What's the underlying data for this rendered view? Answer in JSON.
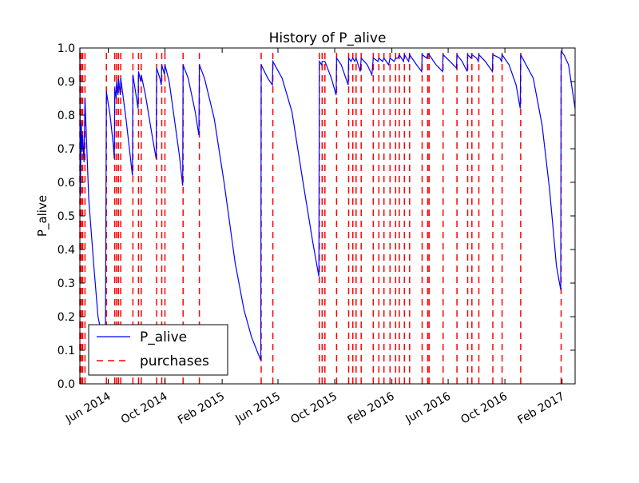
{
  "chart_data": {
    "type": "line",
    "title": "History of P_alive",
    "xlabel": "",
    "ylabel": "P_alive",
    "xlim": [
      "2014-04-01",
      "2017-03-01"
    ],
    "ylim": [
      0.0,
      1.0
    ],
    "y_ticks": [
      "0.0",
      "0.1",
      "0.2",
      "0.3",
      "0.4",
      "0.5",
      "0.6",
      "0.7",
      "0.8",
      "0.9",
      "1.0"
    ],
    "x_ticks": [
      {
        "date": "2014-06-01",
        "label": "Jun 2014"
      },
      {
        "date": "2014-10-01",
        "label": "Oct 2014"
      },
      {
        "date": "2015-02-01",
        "label": "Feb 2015"
      },
      {
        "date": "2015-06-01",
        "label": "Jun 2015"
      },
      {
        "date": "2015-10-01",
        "label": "Oct 2015"
      },
      {
        "date": "2016-02-01",
        "label": "Feb 2016"
      },
      {
        "date": "2016-06-01",
        "label": "Jun 2016"
      },
      {
        "date": "2016-10-01",
        "label": "Oct 2016"
      },
      {
        "date": "2017-02-01",
        "label": "Feb 2017"
      }
    ],
    "grid": false,
    "legend_position": "bottom-left",
    "series": [
      {
        "name": "P_alive",
        "style": "solid",
        "color": "#0000ff",
        "points": [
          [
            "2014-04-01",
            1.0
          ],
          [
            "2014-04-02",
            0.56
          ],
          [
            "2014-04-04",
            0.78
          ],
          [
            "2014-04-06",
            0.69
          ],
          [
            "2014-04-07",
            0.74
          ],
          [
            "2014-04-10",
            0.66
          ],
          [
            "2014-04-12",
            0.85
          ],
          [
            "2014-04-20",
            0.55
          ],
          [
            "2014-05-01",
            0.35
          ],
          [
            "2014-05-10",
            0.2
          ],
          [
            "2014-05-16",
            0.16
          ],
          [
            "2014-05-20",
            0.14
          ],
          [
            "2014-05-26",
            0.12
          ],
          [
            "2014-05-28",
            0.87
          ],
          [
            "2014-06-05",
            0.8
          ],
          [
            "2014-06-12",
            0.71
          ],
          [
            "2014-06-14",
            0.67
          ],
          [
            "2014-06-15",
            0.88
          ],
          [
            "2014-06-18",
            0.85
          ],
          [
            "2014-06-19",
            0.9
          ],
          [
            "2014-06-22",
            0.86
          ],
          [
            "2014-06-23",
            0.91
          ],
          [
            "2014-06-27",
            0.86
          ],
          [
            "2014-06-28",
            0.91
          ],
          [
            "2014-07-10",
            0.78
          ],
          [
            "2014-07-23",
            0.62
          ],
          [
            "2014-07-24",
            0.92
          ],
          [
            "2014-08-02",
            0.84
          ],
          [
            "2014-08-04",
            0.82
          ],
          [
            "2014-08-05",
            0.93
          ],
          [
            "2014-08-10",
            0.9
          ],
          [
            "2014-08-11",
            0.92
          ],
          [
            "2014-08-20",
            0.86
          ],
          [
            "2014-09-02",
            0.75
          ],
          [
            "2014-09-12",
            0.67
          ],
          [
            "2014-09-13",
            0.94
          ],
          [
            "2014-09-20",
            0.91
          ],
          [
            "2014-09-23",
            0.89
          ],
          [
            "2014-09-24",
            0.95
          ],
          [
            "2014-09-30",
            0.92
          ],
          [
            "2014-10-01",
            0.95
          ],
          [
            "2014-10-10",
            0.9
          ],
          [
            "2014-10-22",
            0.78
          ],
          [
            "2014-11-01",
            0.68
          ],
          [
            "2014-11-08",
            0.59
          ],
          [
            "2014-11-09",
            0.95
          ],
          [
            "2014-11-20",
            0.91
          ],
          [
            "2014-12-05",
            0.81
          ],
          [
            "2014-12-13",
            0.74
          ],
          [
            "2014-12-14",
            0.95
          ],
          [
            "2014-12-25",
            0.91
          ],
          [
            "2015-01-15",
            0.79
          ],
          [
            "2015-02-05",
            0.6
          ],
          [
            "2015-03-01",
            0.36
          ],
          [
            "2015-03-20",
            0.22
          ],
          [
            "2015-04-05",
            0.14
          ],
          [
            "2015-04-25",
            0.07
          ],
          [
            "2015-04-26",
            0.95
          ],
          [
            "2015-05-10",
            0.91
          ],
          [
            "2015-05-20",
            0.89
          ],
          [
            "2015-05-21",
            0.96
          ],
          [
            "2015-06-10",
            0.91
          ],
          [
            "2015-07-01",
            0.81
          ],
          [
            "2015-07-25",
            0.6
          ],
          [
            "2015-08-15",
            0.42
          ],
          [
            "2015-08-28",
            0.32
          ],
          [
            "2015-08-29",
            0.96
          ],
          [
            "2015-09-03",
            0.95
          ],
          [
            "2015-09-04",
            0.96
          ],
          [
            "2015-09-10",
            0.96
          ],
          [
            "2015-09-24",
            0.91
          ],
          [
            "2015-10-04",
            0.86
          ],
          [
            "2015-10-05",
            0.97
          ],
          [
            "2015-10-15",
            0.95
          ],
          [
            "2015-10-30",
            0.89
          ],
          [
            "2015-10-31",
            0.97
          ],
          [
            "2015-11-05",
            0.96
          ],
          [
            "2015-11-09",
            0.97
          ],
          [
            "2015-11-13",
            0.96
          ],
          [
            "2015-11-16",
            0.97
          ],
          [
            "2015-11-25",
            0.93
          ],
          [
            "2015-11-27",
            0.97
          ],
          [
            "2015-12-10",
            0.95
          ],
          [
            "2015-12-20",
            0.92
          ],
          [
            "2015-12-23",
            0.97
          ],
          [
            "2016-01-02",
            0.96
          ],
          [
            "2016-01-04",
            0.97
          ],
          [
            "2016-01-12",
            0.96
          ],
          [
            "2016-01-15",
            0.97
          ],
          [
            "2016-01-25",
            0.95
          ],
          [
            "2016-01-28",
            0.97
          ],
          [
            "2016-02-06",
            0.96
          ],
          [
            "2016-02-09",
            0.97
          ],
          [
            "2016-02-14",
            0.97
          ],
          [
            "2016-02-17",
            0.98
          ],
          [
            "2016-02-26",
            0.96
          ],
          [
            "2016-02-28",
            0.98
          ],
          [
            "2016-03-08",
            0.96
          ],
          [
            "2016-03-10",
            0.98
          ],
          [
            "2016-03-25",
            0.95
          ],
          [
            "2016-04-05",
            0.93
          ],
          [
            "2016-04-06",
            0.98
          ],
          [
            "2016-04-16",
            0.97
          ],
          [
            "2016-04-18",
            0.98
          ],
          [
            "2016-04-21",
            0.98
          ],
          [
            "2016-05-06",
            0.95
          ],
          [
            "2016-05-20",
            0.93
          ],
          [
            "2016-05-21",
            0.98
          ],
          [
            "2016-06-05",
            0.96
          ],
          [
            "2016-06-19",
            0.94
          ],
          [
            "2016-06-20",
            0.98
          ],
          [
            "2016-07-01",
            0.96
          ],
          [
            "2016-07-12",
            0.93
          ],
          [
            "2016-07-13",
            0.98
          ],
          [
            "2016-07-20",
            0.97
          ],
          [
            "2016-07-22",
            0.98
          ],
          [
            "2016-08-01",
            0.97
          ],
          [
            "2016-08-05",
            0.96
          ],
          [
            "2016-08-06",
            0.98
          ],
          [
            "2016-08-20",
            0.96
          ],
          [
            "2016-09-04",
            0.93
          ],
          [
            "2016-09-05",
            0.98
          ],
          [
            "2016-09-20",
            0.97
          ],
          [
            "2016-09-24",
            0.96
          ],
          [
            "2016-09-25",
            0.98
          ],
          [
            "2016-10-10",
            0.95
          ],
          [
            "2016-10-25",
            0.89
          ],
          [
            "2016-11-03",
            0.82
          ],
          [
            "2016-11-04",
            0.98
          ],
          [
            "2016-12-01",
            0.91
          ],
          [
            "2016-12-20",
            0.77
          ],
          [
            "2017-01-05",
            0.58
          ],
          [
            "2017-01-20",
            0.35
          ],
          [
            "2017-01-29",
            0.28
          ],
          [
            "2017-01-30",
            0.99
          ],
          [
            "2017-02-05",
            0.98
          ],
          [
            "2017-02-15",
            0.95
          ],
          [
            "2017-03-01",
            0.82
          ]
        ]
      },
      {
        "name": "purchases",
        "style": "dashed",
        "color": "#ff0000",
        "dates": [
          "2014-04-01",
          "2014-04-02",
          "2014-04-04",
          "2014-04-07",
          "2014-04-12",
          "2014-05-28",
          "2014-06-15",
          "2014-06-19",
          "2014-06-23",
          "2014-06-28",
          "2014-07-24",
          "2014-08-05",
          "2014-08-11",
          "2014-09-13",
          "2014-09-24",
          "2014-10-01",
          "2014-11-09",
          "2014-12-14",
          "2015-04-26",
          "2015-05-21",
          "2015-08-29",
          "2015-09-04",
          "2015-09-10",
          "2015-10-05",
          "2015-10-31",
          "2015-11-09",
          "2015-11-16",
          "2015-11-27",
          "2015-12-23",
          "2016-01-04",
          "2016-01-15",
          "2016-01-28",
          "2016-02-09",
          "2016-02-17",
          "2016-02-28",
          "2016-03-10",
          "2016-04-06",
          "2016-04-18",
          "2016-04-21",
          "2016-05-21",
          "2016-06-20",
          "2016-07-13",
          "2016-07-22",
          "2016-08-06",
          "2016-09-05",
          "2016-09-25",
          "2016-11-04",
          "2017-01-30"
        ]
      }
    ]
  }
}
